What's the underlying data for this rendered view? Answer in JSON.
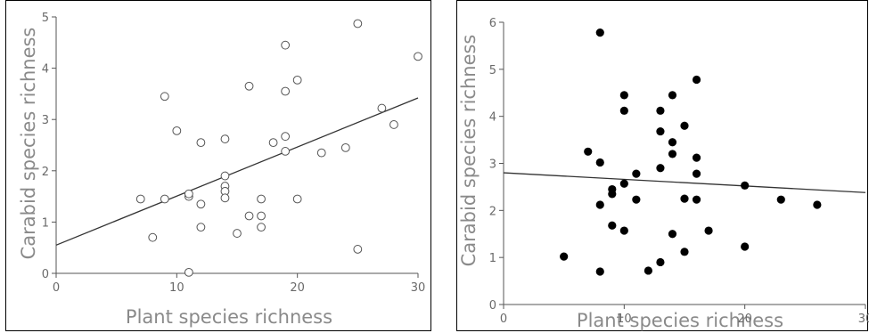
{
  "chart_data": [
    {
      "type": "scatter",
      "marker": "open-circle",
      "xlabel": "Plant species richness",
      "ylabel": "Carabid species richness",
      "xlim": [
        0,
        30
      ],
      "ylim": [
        0,
        5
      ],
      "xticks": [
        0,
        10,
        20,
        30
      ],
      "yticks": [
        0,
        1,
        2,
        3,
        4,
        5
      ],
      "grid": false,
      "trend_line": {
        "x": [
          0,
          30
        ],
        "y": [
          0.55,
          3.42
        ]
      },
      "points": [
        {
          "x": 7,
          "y": 1.45
        },
        {
          "x": 8,
          "y": 0.7
        },
        {
          "x": 9,
          "y": 1.45
        },
        {
          "x": 9,
          "y": 3.45
        },
        {
          "x": 10,
          "y": 2.78
        },
        {
          "x": 11,
          "y": 1.5
        },
        {
          "x": 11,
          "y": 1.55
        },
        {
          "x": 11,
          "y": 0.02
        },
        {
          "x": 12,
          "y": 2.55
        },
        {
          "x": 12,
          "y": 1.35
        },
        {
          "x": 12,
          "y": 0.9
        },
        {
          "x": 14,
          "y": 2.62
        },
        {
          "x": 14,
          "y": 1.9
        },
        {
          "x": 14,
          "y": 1.7
        },
        {
          "x": 14,
          "y": 1.6
        },
        {
          "x": 14,
          "y": 1.47
        },
        {
          "x": 15,
          "y": 0.78
        },
        {
          "x": 16,
          "y": 3.65
        },
        {
          "x": 16,
          "y": 1.12
        },
        {
          "x": 17,
          "y": 1.45
        },
        {
          "x": 17,
          "y": 1.12
        },
        {
          "x": 17,
          "y": 0.9
        },
        {
          "x": 18,
          "y": 2.55
        },
        {
          "x": 19,
          "y": 4.45
        },
        {
          "x": 19,
          "y": 3.55
        },
        {
          "x": 19,
          "y": 2.67
        },
        {
          "x": 19,
          "y": 2.38
        },
        {
          "x": 20,
          "y": 3.77
        },
        {
          "x": 20,
          "y": 1.45
        },
        {
          "x": 22,
          "y": 2.35
        },
        {
          "x": 24,
          "y": 2.45
        },
        {
          "x": 25,
          "y": 4.87
        },
        {
          "x": 25,
          "y": 0.47
        },
        {
          "x": 27,
          "y": 3.22
        },
        {
          "x": 28,
          "y": 2.9
        },
        {
          "x": 30,
          "y": 4.23
        }
      ]
    },
    {
      "type": "scatter",
      "marker": "filled-circle",
      "xlabel": "Plant species richness",
      "ylabel": "Carabid species richness",
      "xlim": [
        0,
        30
      ],
      "ylim": [
        0,
        6
      ],
      "xticks": [
        0,
        10,
        20,
        30
      ],
      "yticks": [
        0,
        1,
        2,
        3,
        4,
        5,
        6
      ],
      "grid": false,
      "trend_line": {
        "x": [
          0,
          30
        ],
        "y": [
          2.8,
          2.38
        ]
      },
      "points": [
        {
          "x": 5,
          "y": 1.02
        },
        {
          "x": 7,
          "y": 3.25
        },
        {
          "x": 8,
          "y": 5.78
        },
        {
          "x": 8,
          "y": 3.02
        },
        {
          "x": 8,
          "y": 2.12
        },
        {
          "x": 8,
          "y": 0.7
        },
        {
          "x": 9,
          "y": 2.45
        },
        {
          "x": 9,
          "y": 2.35
        },
        {
          "x": 9,
          "y": 1.68
        },
        {
          "x": 10,
          "y": 4.45
        },
        {
          "x": 10,
          "y": 4.12
        },
        {
          "x": 10,
          "y": 2.57
        },
        {
          "x": 10,
          "y": 1.57
        },
        {
          "x": 11,
          "y": 2.78
        },
        {
          "x": 11,
          "y": 2.23
        },
        {
          "x": 12,
          "y": 0.72
        },
        {
          "x": 13,
          "y": 4.12
        },
        {
          "x": 13,
          "y": 3.68
        },
        {
          "x": 13,
          "y": 2.9
        },
        {
          "x": 13,
          "y": 0.9
        },
        {
          "x": 14,
          "y": 4.45
        },
        {
          "x": 14,
          "y": 3.45
        },
        {
          "x": 14,
          "y": 3.2
        },
        {
          "x": 14,
          "y": 1.5
        },
        {
          "x": 15,
          "y": 3.8
        },
        {
          "x": 15,
          "y": 2.25
        },
        {
          "x": 15,
          "y": 1.12
        },
        {
          "x": 16,
          "y": 4.78
        },
        {
          "x": 16,
          "y": 3.12
        },
        {
          "x": 16,
          "y": 2.78
        },
        {
          "x": 16,
          "y": 2.23
        },
        {
          "x": 17,
          "y": 1.57
        },
        {
          "x": 20,
          "y": 2.53
        },
        {
          "x": 20,
          "y": 1.23
        },
        {
          "x": 23,
          "y": 2.23
        },
        {
          "x": 26,
          "y": 2.12
        }
      ]
    }
  ]
}
